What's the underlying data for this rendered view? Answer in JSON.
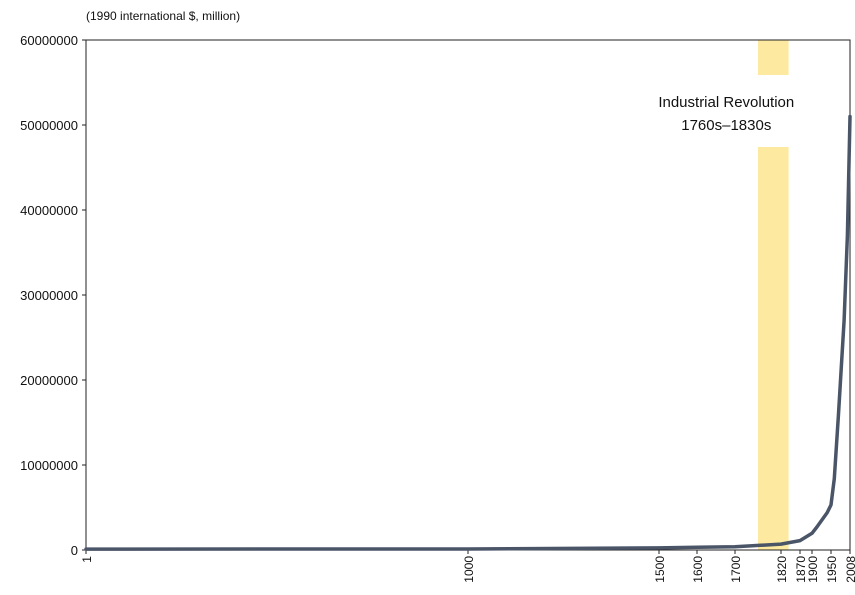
{
  "chart_data": {
    "type": "line",
    "unit_label": "(1990 international $, million)",
    "y_ticks": [
      0,
      10000000,
      20000000,
      30000000,
      40000000,
      50000000,
      60000000
    ],
    "y_tick_labels": [
      "0",
      "10000000",
      "20000000",
      "30000000",
      "40000000",
      "50000000",
      "60000000"
    ],
    "ylim": [
      0,
      60000000
    ],
    "xlim": [
      1,
      2008
    ],
    "x_ticks": [
      1,
      1000,
      1500,
      1600,
      1700,
      1820,
      1870,
      1900,
      1950,
      2008
    ],
    "x_tick_labels": [
      "1",
      "1000",
      "1500",
      "1600",
      "1700",
      "1820",
      "1870",
      "1900",
      "1950",
      "2008"
    ],
    "grid": false,
    "series": [
      {
        "color": "#4a5568",
        "x": [
          1,
          1000,
          1500,
          1600,
          1700,
          1820,
          1870,
          1900,
          1913,
          1940,
          1950,
          1960,
          1973,
          1990,
          2000,
          2008
        ],
        "y": [
          105000,
          121000,
          248000,
          331000,
          371000,
          695000,
          1100000,
          1970000,
          2700000,
          4400000,
          5300000,
          8400000,
          16000000,
          27000000,
          37000000,
          51000000
        ]
      }
    ],
    "annotations": [
      {
        "line1": "Industrial Revolution",
        "line2": "1760s–1830s",
        "x_start": 1760,
        "x_end": 1840,
        "color": "#fde9a0"
      }
    ]
  }
}
